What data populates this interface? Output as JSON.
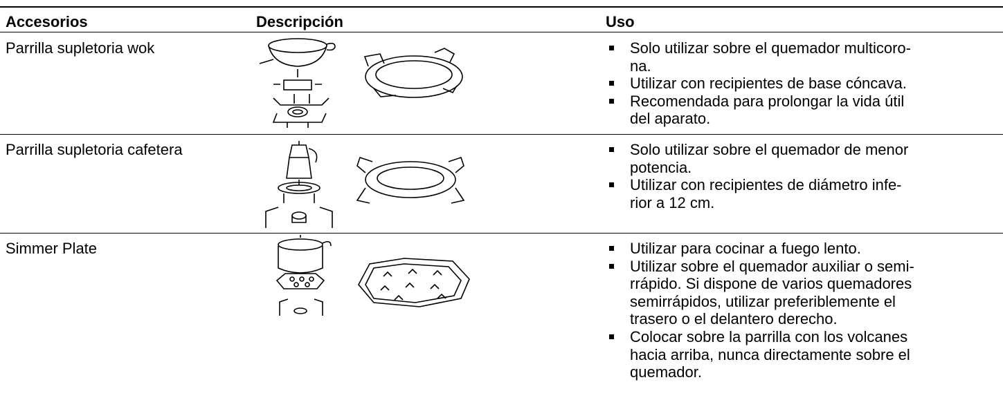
{
  "header": {
    "accessories": "Accesorios",
    "description": "Descripción",
    "use": "Uso"
  },
  "rows": [
    {
      "accessory": "Parrilla supletoria wok",
      "uses": [
        "Solo utilizar sobre el quemador multicoro-\nna.",
        "Utilizar con recipientes de base cóncava.",
        "Recomendada para prolongar la vida útil\ndel aparato."
      ]
    },
    {
      "accessory": "Parrilla supletoria cafetera",
      "uses": [
        "Solo utilizar sobre el quemador de menor\npotencia.",
        "Utilizar con recipientes de diámetro infe-\nrior a 12 cm."
      ]
    },
    {
      "accessory": "Simmer Plate",
      "uses": [
        "Utilizar para cocinar a fuego lento.",
        "Utilizar sobre el quemador auxiliar o semi-\nrrápido. Si dispone de varios quemadores\nsemirrápidos, utilizar preferiblemente el\ntrasero o el delantero derecho.",
        "Colocar sobre la parrilla con los volcanes\nhacia arriba, nunca directamente sobre el\nquemador."
      ]
    }
  ]
}
